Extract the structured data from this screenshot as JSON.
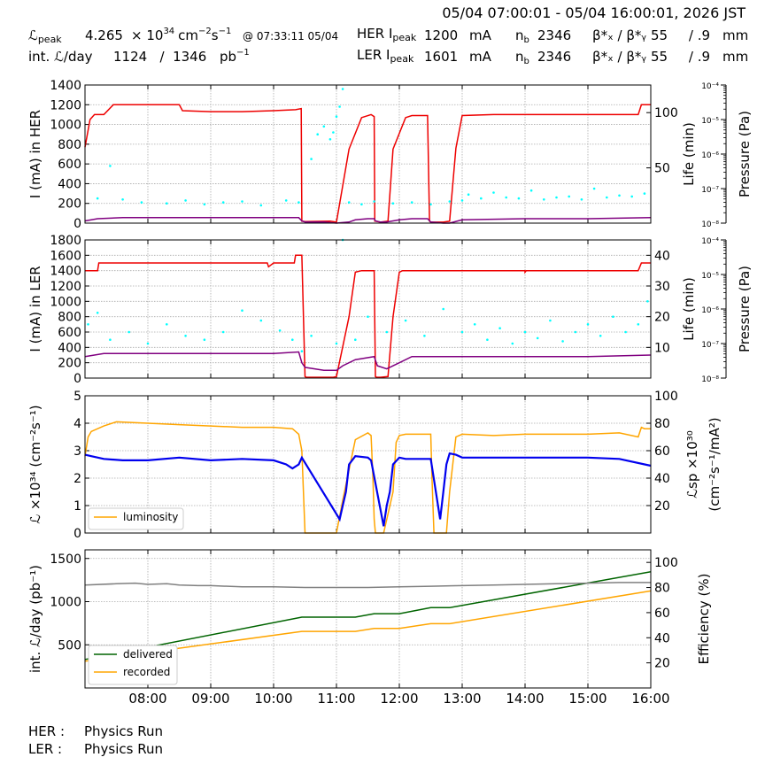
{
  "header": {
    "time_range": "05/04 07:00:01 - 05/04 16:00:01, 2026 JST",
    "lpeak_label": "ℒ",
    "lpeak_sub": "peak",
    "lpeak_value": "4.265",
    "lpeak_unit_pre": "× 10",
    "lpeak_exp": "34",
    "lpeak_unit": "cm",
    "lpeak_unit_e1": "−2",
    "lpeak_unit_s": "s",
    "lpeak_unit_e2": "−1",
    "lpeak_time": "@ 07:33:11 05/04",
    "intl_label": "int. ℒ/day",
    "intl_value": "1124   /  1346",
    "intl_unit": "pb",
    "intl_unit_e": "−1",
    "her_label": "HER I",
    "her_sub": "peak",
    "her_value": "1200",
    "her_unit": "mA",
    "ler_label": "LER I",
    "ler_sub": "peak",
    "ler_value": "1601",
    "ler_unit": "mA",
    "nb_label": "n",
    "nb_sub": "b",
    "nb_her": "2346",
    "nb_ler": "2346",
    "beta_label": "β*ₓ / β*ᵧ",
    "beta_her": "55     / .9",
    "beta_ler": "55     / .9",
    "beta_unit": "mm"
  },
  "footer": {
    "her_label": "HER :",
    "her_status": "Physics Run",
    "ler_label": "LER :",
    "ler_status": "Physics Run"
  },
  "colors": {
    "current": "#ee0000",
    "life": "#800080",
    "pressure": "#00ffff",
    "lumi": "#ffa500",
    "specific": "#0000ee",
    "delivered": "#006400",
    "recorded": "#ffa500",
    "efficiency": "#808080"
  },
  "chart_data": [
    {
      "type": "line",
      "panel": "HER",
      "ylabel": "I (mA) in HER",
      "ylabel_right": "Life (min)",
      "ylabel_right2": "Pressure (Pa)",
      "ylim": [
        0,
        1400
      ],
      "yticks": [
        0,
        200,
        400,
        600,
        800,
        1000,
        1200,
        1400
      ],
      "ylim_right": [
        0,
        125
      ],
      "yticks_right": [
        50,
        100
      ],
      "pressure_ticks": [
        "10⁻⁸",
        "10⁻⁷",
        "10⁻⁶",
        "10⁻⁵",
        "10⁻⁴"
      ],
      "series": [
        {
          "role": "current",
          "x": [
            7.0,
            7.08,
            7.15,
            7.3,
            7.45,
            8.0,
            8.5,
            8.55,
            9.0,
            9.5,
            10.0,
            10.35,
            10.44,
            10.45,
            10.5,
            10.9,
            11.0,
            11.2,
            11.4,
            11.55,
            11.6,
            11.61,
            11.62,
            11.7,
            11.82,
            11.9,
            12.1,
            12.2,
            12.45,
            12.48,
            12.5,
            12.7,
            12.8,
            12.9,
            13.0,
            13.5,
            14.0,
            14.5,
            15.0,
            15.5,
            15.8,
            15.85,
            15.9,
            16.0
          ],
          "y": [
            770,
            1050,
            1100,
            1100,
            1200,
            1200,
            1200,
            1140,
            1130,
            1130,
            1140,
            1150,
            1160,
            20,
            15,
            20,
            10,
            750,
            1070,
            1100,
            1080,
            20,
            20,
            10,
            20,
            750,
            1070,
            1090,
            1090,
            20,
            10,
            10,
            20,
            760,
            1090,
            1100,
            1100,
            1100,
            1100,
            1100,
            1100,
            1200,
            1200,
            1200
          ]
        },
        {
          "role": "life",
          "x": [
            7.0,
            7.2,
            7.6,
            8.0,
            9.0,
            10.0,
            10.4,
            10.45,
            10.5,
            10.8,
            11.0,
            11.2,
            11.3,
            11.5,
            11.6,
            11.62,
            11.7,
            11.8,
            12.0,
            12.2,
            12.45,
            12.5,
            12.7,
            12.8,
            13.0,
            14.0,
            15.0,
            16.0
          ],
          "y": [
            2,
            4,
            5,
            5,
            5,
            5,
            5,
            2,
            1,
            1,
            0,
            1,
            3,
            4,
            4,
            2,
            1,
            1,
            3,
            4,
            4,
            1,
            0,
            0,
            3,
            4,
            4,
            5
          ]
        },
        {
          "role": "pressure",
          "x": [
            7.2,
            7.4,
            7.6,
            7.9,
            8.3,
            8.6,
            8.9,
            9.2,
            9.5,
            9.8,
            10.2,
            10.4,
            10.6,
            10.7,
            10.8,
            10.9,
            10.95,
            11.0,
            11.05,
            11.1,
            11.2,
            11.4,
            11.6,
            11.9,
            12.2,
            12.5,
            12.8,
            13.0,
            13.1,
            13.3,
            13.5,
            13.7,
            13.9,
            14.1,
            14.3,
            14.5,
            14.7,
            14.9,
            15.1,
            15.3,
            15.5,
            15.7,
            15.9
          ],
          "y": [
            250,
            580,
            240,
            210,
            200,
            230,
            190,
            210,
            220,
            180,
            230,
            210,
            650,
            900,
            980,
            850,
            920,
            1080,
            1180,
            1360,
            210,
            190,
            220,
            200,
            210,
            190,
            220,
            230,
            290,
            250,
            310,
            260,
            250,
            330,
            240,
            260,
            270,
            240,
            350,
            260,
            280,
            270,
            300
          ]
        }
      ]
    },
    {
      "type": "line",
      "panel": "LER",
      "ylabel": "I (mA) in LER",
      "ylabel_right": "Life (min)",
      "ylabel_right2": "Pressure (Pa)",
      "ylim": [
        0,
        1800
      ],
      "yticks": [
        0,
        200,
        400,
        600,
        800,
        1000,
        1200,
        1400,
        1600,
        1800
      ],
      "ylim_right": [
        0,
        45
      ],
      "yticks_right": [
        10,
        20,
        30,
        40
      ],
      "pressure_ticks": [
        "10⁻⁸",
        "10⁻⁷",
        "10⁻⁶",
        "10⁻⁵",
        "10⁻⁴"
      ],
      "series": [
        {
          "role": "current",
          "x": [
            7.0,
            7.2,
            7.22,
            7.3,
            8.0,
            9.0,
            9.9,
            9.92,
            10.0,
            10.33,
            10.35,
            10.45,
            10.5,
            10.52,
            10.8,
            10.95,
            11.0,
            11.2,
            11.3,
            11.4,
            11.6,
            11.62,
            11.64,
            11.7,
            11.82,
            11.9,
            12.0,
            12.05,
            12.1,
            12.45,
            12.5,
            12.8,
            13.0,
            14.0,
            14.0,
            14.02,
            15.0,
            15.8,
            15.85,
            16.0
          ],
          "y": [
            1400,
            1400,
            1500,
            1500,
            1500,
            1500,
            1500,
            1450,
            1500,
            1500,
            1600,
            1600,
            20,
            10,
            10,
            10,
            20,
            800,
            1380,
            1400,
            1400,
            20,
            10,
            10,
            20,
            800,
            1380,
            1400,
            1400,
            1400,
            1400,
            1400,
            1400,
            1400,
            1380,
            1400,
            1400,
            1400,
            1500,
            1500
          ]
        },
        {
          "role": "life",
          "x": [
            7.0,
            7.3,
            7.6,
            8.0,
            9.0,
            10.0,
            10.4,
            10.45,
            10.5,
            10.8,
            11.0,
            11.1,
            11.3,
            11.6,
            11.65,
            11.8,
            12.0,
            12.2,
            12.5,
            13.0,
            14.0,
            15.0,
            16.0
          ],
          "y": [
            7,
            8,
            8,
            8,
            8,
            8,
            8.5,
            5,
            3.5,
            2.5,
            2.5,
            4,
            6,
            7,
            4,
            3,
            5,
            7,
            7,
            7,
            7,
            7,
            7.5
          ]
        },
        {
          "role": "pressure",
          "x": [
            7.05,
            7.2,
            7.4,
            7.7,
            8.0,
            8.3,
            8.6,
            8.9,
            9.2,
            9.5,
            9.8,
            10.1,
            10.3,
            10.45,
            10.6,
            11.0,
            11.1,
            11.3,
            11.5,
            11.8,
            12.1,
            12.4,
            12.7,
            13.0,
            13.2,
            13.4,
            13.6,
            13.8,
            14.0,
            14.2,
            14.4,
            14.6,
            14.8,
            15.0,
            15.2,
            15.4,
            15.6,
            15.8,
            15.95
          ],
          "y": [
            700,
            850,
            500,
            600,
            450,
            700,
            550,
            500,
            600,
            880,
            750,
            620,
            500,
            350,
            550,
            450,
            1800,
            500,
            800,
            600,
            750,
            550,
            900,
            600,
            700,
            500,
            650,
            450,
            600,
            520,
            750,
            480,
            600,
            700,
            550,
            800,
            600,
            700,
            1000
          ]
        }
      ]
    },
    {
      "type": "line",
      "panel": "Luminosity",
      "ylabel": "ℒ ×10³⁴ (cm⁻²s⁻¹)",
      "ylabel_right": "ℒsp ×10³⁰",
      "ylabel_right2": "(cm⁻²s⁻¹/mA²)",
      "ylim": [
        0,
        5
      ],
      "yticks": [
        0,
        1,
        2,
        3,
        4,
        5
      ],
      "ylim_right": [
        0,
        100
      ],
      "yticks_right": [
        20,
        40,
        60,
        80,
        100
      ],
      "legend": [
        "luminosity"
      ],
      "series": [
        {
          "name": "luminosity",
          "role": "lumi",
          "x": [
            7.0,
            7.05,
            7.1,
            7.3,
            7.5,
            8.0,
            8.5,
            9.0,
            9.5,
            10.0,
            10.3,
            10.4,
            10.45,
            10.5,
            10.9,
            11.0,
            11.1,
            11.3,
            11.5,
            11.55,
            11.58,
            11.6,
            11.62,
            11.75,
            11.9,
            11.95,
            12.0,
            12.1,
            12.5,
            12.52,
            12.55,
            12.7,
            12.75,
            12.8,
            12.9,
            13.0,
            13.5,
            14.0,
            14.5,
            15.0,
            15.5,
            15.8,
            15.85,
            15.9,
            16.0
          ],
          "y": [
            2.8,
            3.5,
            3.7,
            3.9,
            4.05,
            4.0,
            3.95,
            3.9,
            3.85,
            3.85,
            3.8,
            3.6,
            3.0,
            0,
            0,
            0,
            1.2,
            3.4,
            3.65,
            3.55,
            2.0,
            0.5,
            0,
            0,
            1.5,
            3.3,
            3.55,
            3.6,
            3.6,
            2.0,
            0,
            0,
            0,
            1.5,
            3.5,
            3.6,
            3.55,
            3.6,
            3.6,
            3.6,
            3.65,
            3.5,
            3.85,
            3.8,
            3.8
          ]
        },
        {
          "role": "specific",
          "x": [
            7.0,
            7.1,
            7.3,
            7.6,
            8.0,
            8.5,
            9.0,
            9.5,
            10.0,
            10.2,
            10.3,
            10.4,
            10.45,
            11.05,
            11.1,
            11.15,
            11.2,
            11.3,
            11.5,
            11.55,
            11.75,
            11.8,
            11.85,
            11.9,
            12.0,
            12.1,
            12.5,
            12.65,
            12.7,
            12.75,
            12.8,
            12.9,
            13.0,
            13.5,
            14.0,
            14.5,
            15.0,
            15.5,
            16.0
          ],
          "y": [
            57,
            56,
            54,
            53,
            53,
            55,
            53,
            54,
            53,
            50,
            47,
            50,
            55,
            10,
            20,
            30,
            50,
            56,
            55,
            53,
            5,
            20,
            30,
            50,
            55,
            54,
            54,
            10,
            30,
            50,
            58,
            57,
            55,
            55,
            55,
            55,
            55,
            54,
            49
          ]
        }
      ]
    },
    {
      "type": "line",
      "panel": "Integrated",
      "ylabel": "int. ℒ/day (pb⁻¹)",
      "ylabel_right": "Efficiency (%)",
      "ylim": [
        0,
        1600
      ],
      "yticks": [
        500,
        1000,
        1500
      ],
      "ylim_right": [
        0,
        110
      ],
      "yticks_right": [
        20,
        40,
        60,
        80,
        100
      ],
      "xlim": [
        7,
        16
      ],
      "xticks": [
        "08:00",
        "09:00",
        "10:00",
        "11:00",
        "12:00",
        "13:00",
        "14:00",
        "15:00",
        "16:00"
      ],
      "legend": [
        "delivered",
        "recorded"
      ],
      "series": [
        {
          "name": "delivered",
          "role": "delivered",
          "x": [
            7.0,
            10.45,
            11.3,
            11.6,
            12.0,
            12.5,
            12.8,
            16.0
          ],
          "y": [
            330,
            820,
            820,
            860,
            860,
            930,
            930,
            1346
          ]
        },
        {
          "name": "recorded",
          "role": "recorded",
          "x": [
            7.0,
            10.45,
            11.3,
            11.6,
            12.0,
            12.5,
            12.8,
            16.0
          ],
          "y": [
            310,
            655,
            655,
            690,
            690,
            745,
            745,
            1124
          ]
        },
        {
          "role": "efficiency",
          "x": [
            7.0,
            7.5,
            7.8,
            8.0,
            8.3,
            8.5,
            8.8,
            9.0,
            9.5,
            10.0,
            10.5,
            11.0,
            11.5,
            12.0,
            12.5,
            13.0,
            13.5,
            14.0,
            14.5,
            15.0,
            15.5,
            16.0
          ],
          "y": [
            82,
            83,
            83.5,
            82.5,
            83,
            82,
            81.5,
            81.5,
            80.5,
            80.5,
            80,
            80,
            80,
            80.5,
            81,
            81.5,
            82,
            82.5,
            83,
            83.5,
            84,
            84
          ]
        }
      ]
    }
  ]
}
